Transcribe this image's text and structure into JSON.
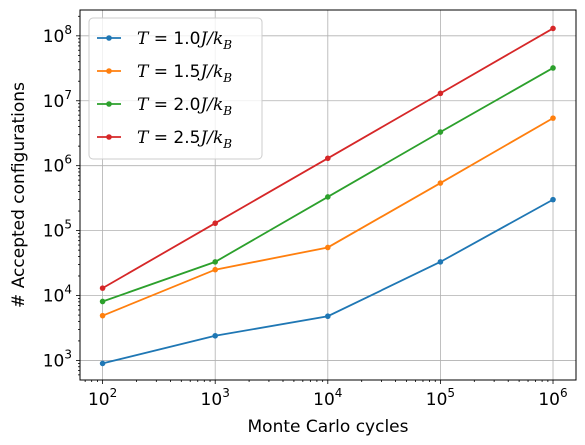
{
  "chart_data": {
    "type": "line",
    "xscale": "log",
    "yscale": "log",
    "xlabel": "Monte Carlo cycles",
    "ylabel": "# Accepted configurations",
    "xlim": [
      63,
      1600000
    ],
    "ylim": [
      500,
      250000000
    ],
    "xticks": [
      {
        "base": "10",
        "exp": "2",
        "value": 100
      },
      {
        "base": "10",
        "exp": "3",
        "value": 1000
      },
      {
        "base": "10",
        "exp": "4",
        "value": 10000
      },
      {
        "base": "10",
        "exp": "5",
        "value": 100000
      },
      {
        "base": "10",
        "exp": "6",
        "value": 1000000
      }
    ],
    "yticks": [
      {
        "base": "10",
        "exp": "3",
        "value": 1000
      },
      {
        "base": "10",
        "exp": "4",
        "value": 10000
      },
      {
        "base": "10",
        "exp": "5",
        "value": 100000
      },
      {
        "base": "10",
        "exp": "6",
        "value": 1000000
      },
      {
        "base": "10",
        "exp": "7",
        "value": 10000000
      },
      {
        "base": "10",
        "exp": "8",
        "value": 100000000
      }
    ],
    "grid": true,
    "legend_position": "top-left",
    "x": [
      100,
      1000,
      10000,
      100000,
      1000000
    ],
    "series": [
      {
        "name": "T = 1.0J/k_B",
        "label_parts": {
          "lhs": "T",
          "eq": " = 1.0",
          "var": "J/k",
          "sub": "B"
        },
        "color": "#1f77b4",
        "values": [
          900,
          2400,
          4800,
          33000,
          300000
        ]
      },
      {
        "name": "T = 1.5J/k_B",
        "label_parts": {
          "lhs": "T",
          "eq": " = 1.5",
          "var": "J/k",
          "sub": "B"
        },
        "color": "#ff7f0e",
        "values": [
          4900,
          25000,
          55000,
          540000,
          5400000
        ]
      },
      {
        "name": "T = 2.0J/k_B",
        "label_parts": {
          "lhs": "T",
          "eq": " = 2.0",
          "var": "J/k",
          "sub": "B"
        },
        "color": "#2ca02c",
        "values": [
          8100,
          33000,
          330000,
          3300000,
          32000000
        ]
      },
      {
        "name": "T = 2.5J/k_B",
        "label_parts": {
          "lhs": "T",
          "eq": " = 2.5",
          "var": "J/k",
          "sub": "B"
        },
        "color": "#d62728",
        "values": [
          13000,
          130000,
          1300000,
          13000000,
          130000000
        ]
      }
    ]
  }
}
